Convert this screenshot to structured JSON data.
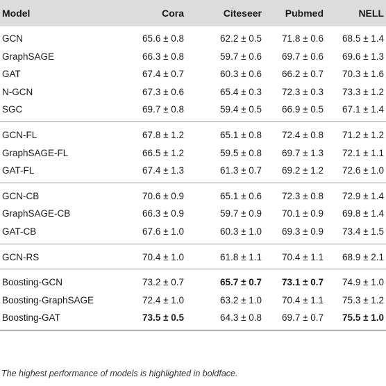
{
  "table": {
    "columns": [
      "Model",
      "Cora",
      "Citeseer",
      "Pubmed",
      "NELL"
    ],
    "groups": [
      [
        {
          "model": "GCN",
          "values": [
            "65.6 ± 0.8",
            "62.2 ± 0.5",
            "71.8 ± 0.6",
            "68.5 ± 1.4"
          ],
          "bold": [
            false,
            false,
            false,
            false
          ]
        },
        {
          "model": "GraphSAGE",
          "values": [
            "66.3 ± 0.8",
            "59.7 ± 0.6",
            "69.7 ± 0.6",
            "69.6 ± 1.3"
          ],
          "bold": [
            false,
            false,
            false,
            false
          ]
        },
        {
          "model": "GAT",
          "values": [
            "67.4 ± 0.7",
            "60.3 ± 0.6",
            "66.2 ± 0.7",
            "70.3 ± 1.6"
          ],
          "bold": [
            false,
            false,
            false,
            false
          ]
        },
        {
          "model": "N-GCN",
          "values": [
            "67.3 ± 0.6",
            "65.4 ± 0.3",
            "72.3 ± 0.3",
            "73.3 ± 1.2"
          ],
          "bold": [
            false,
            false,
            false,
            false
          ]
        },
        {
          "model": "SGC",
          "values": [
            "69.7 ± 0.8",
            "59.4 ± 0.5",
            "66.9 ± 0.5",
            "67.1 ± 1.4"
          ],
          "bold": [
            false,
            false,
            false,
            false
          ]
        }
      ],
      [
        {
          "model": "GCN-FL",
          "values": [
            "67.8 ± 1.2",
            "65.1 ± 0.8",
            "72.4 ± 0.8",
            "71.2 ± 1.2"
          ],
          "bold": [
            false,
            false,
            false,
            false
          ]
        },
        {
          "model": "GraphSAGE-FL",
          "values": [
            "66.5 ± 1.2",
            "59.5 ± 0.8",
            "69.7 ± 1.3",
            "72.1 ± 1.1"
          ],
          "bold": [
            false,
            false,
            false,
            false
          ]
        },
        {
          "model": "GAT-FL",
          "values": [
            "67.4 ± 1.3",
            "61.3 ± 0.7",
            "69.2 ± 1.2",
            "72.6 ± 1.0"
          ],
          "bold": [
            false,
            false,
            false,
            false
          ]
        }
      ],
      [
        {
          "model": "GCN-CB",
          "values": [
            "70.6 ± 0.9",
            "65.1 ± 0.6",
            "72.3 ± 0.8",
            "72.9 ± 1.4"
          ],
          "bold": [
            false,
            false,
            false,
            false
          ]
        },
        {
          "model": "GraphSAGE-CB",
          "values": [
            "66.3 ± 0.9",
            "59.7 ± 0.9",
            "70.1 ± 0.9",
            "69.8 ± 1.4"
          ],
          "bold": [
            false,
            false,
            false,
            false
          ]
        },
        {
          "model": "GAT-CB",
          "values": [
            "67.6 ± 1.0",
            "60.3 ± 1.0",
            "69.3 ± 0.9",
            "73.4 ± 1.5"
          ],
          "bold": [
            false,
            false,
            false,
            false
          ]
        }
      ],
      [
        {
          "model": "GCN-RS",
          "values": [
            "70.4 ± 1.0",
            "61.8 ± 1.1",
            "70.4 ± 1.1",
            "68.9 ± 2.1"
          ],
          "bold": [
            false,
            false,
            false,
            false
          ]
        }
      ],
      [
        {
          "model": "Boosting-GCN",
          "values": [
            "73.2 ± 0.7",
            "65.7 ± 0.7",
            "73.1 ± 0.7",
            "74.9 ± 1.0"
          ],
          "bold": [
            false,
            true,
            true,
            false
          ]
        },
        {
          "model": "Boosting-GraphSAGE",
          "values": [
            "72.4 ± 1.0",
            "63.2 ± 1.0",
            "70.4 ± 1.1",
            "75.3 ± 1.2"
          ],
          "bold": [
            false,
            false,
            false,
            false
          ]
        },
        {
          "model": "Boosting-GAT",
          "values": [
            "73.5 ± 0.5",
            "64.3 ± 0.8",
            "69.7 ± 0.7",
            "75.5 ± 1.0"
          ],
          "bold": [
            true,
            false,
            false,
            true
          ]
        }
      ]
    ]
  },
  "footnote": "The highest performance of models is highlighted in boldface."
}
